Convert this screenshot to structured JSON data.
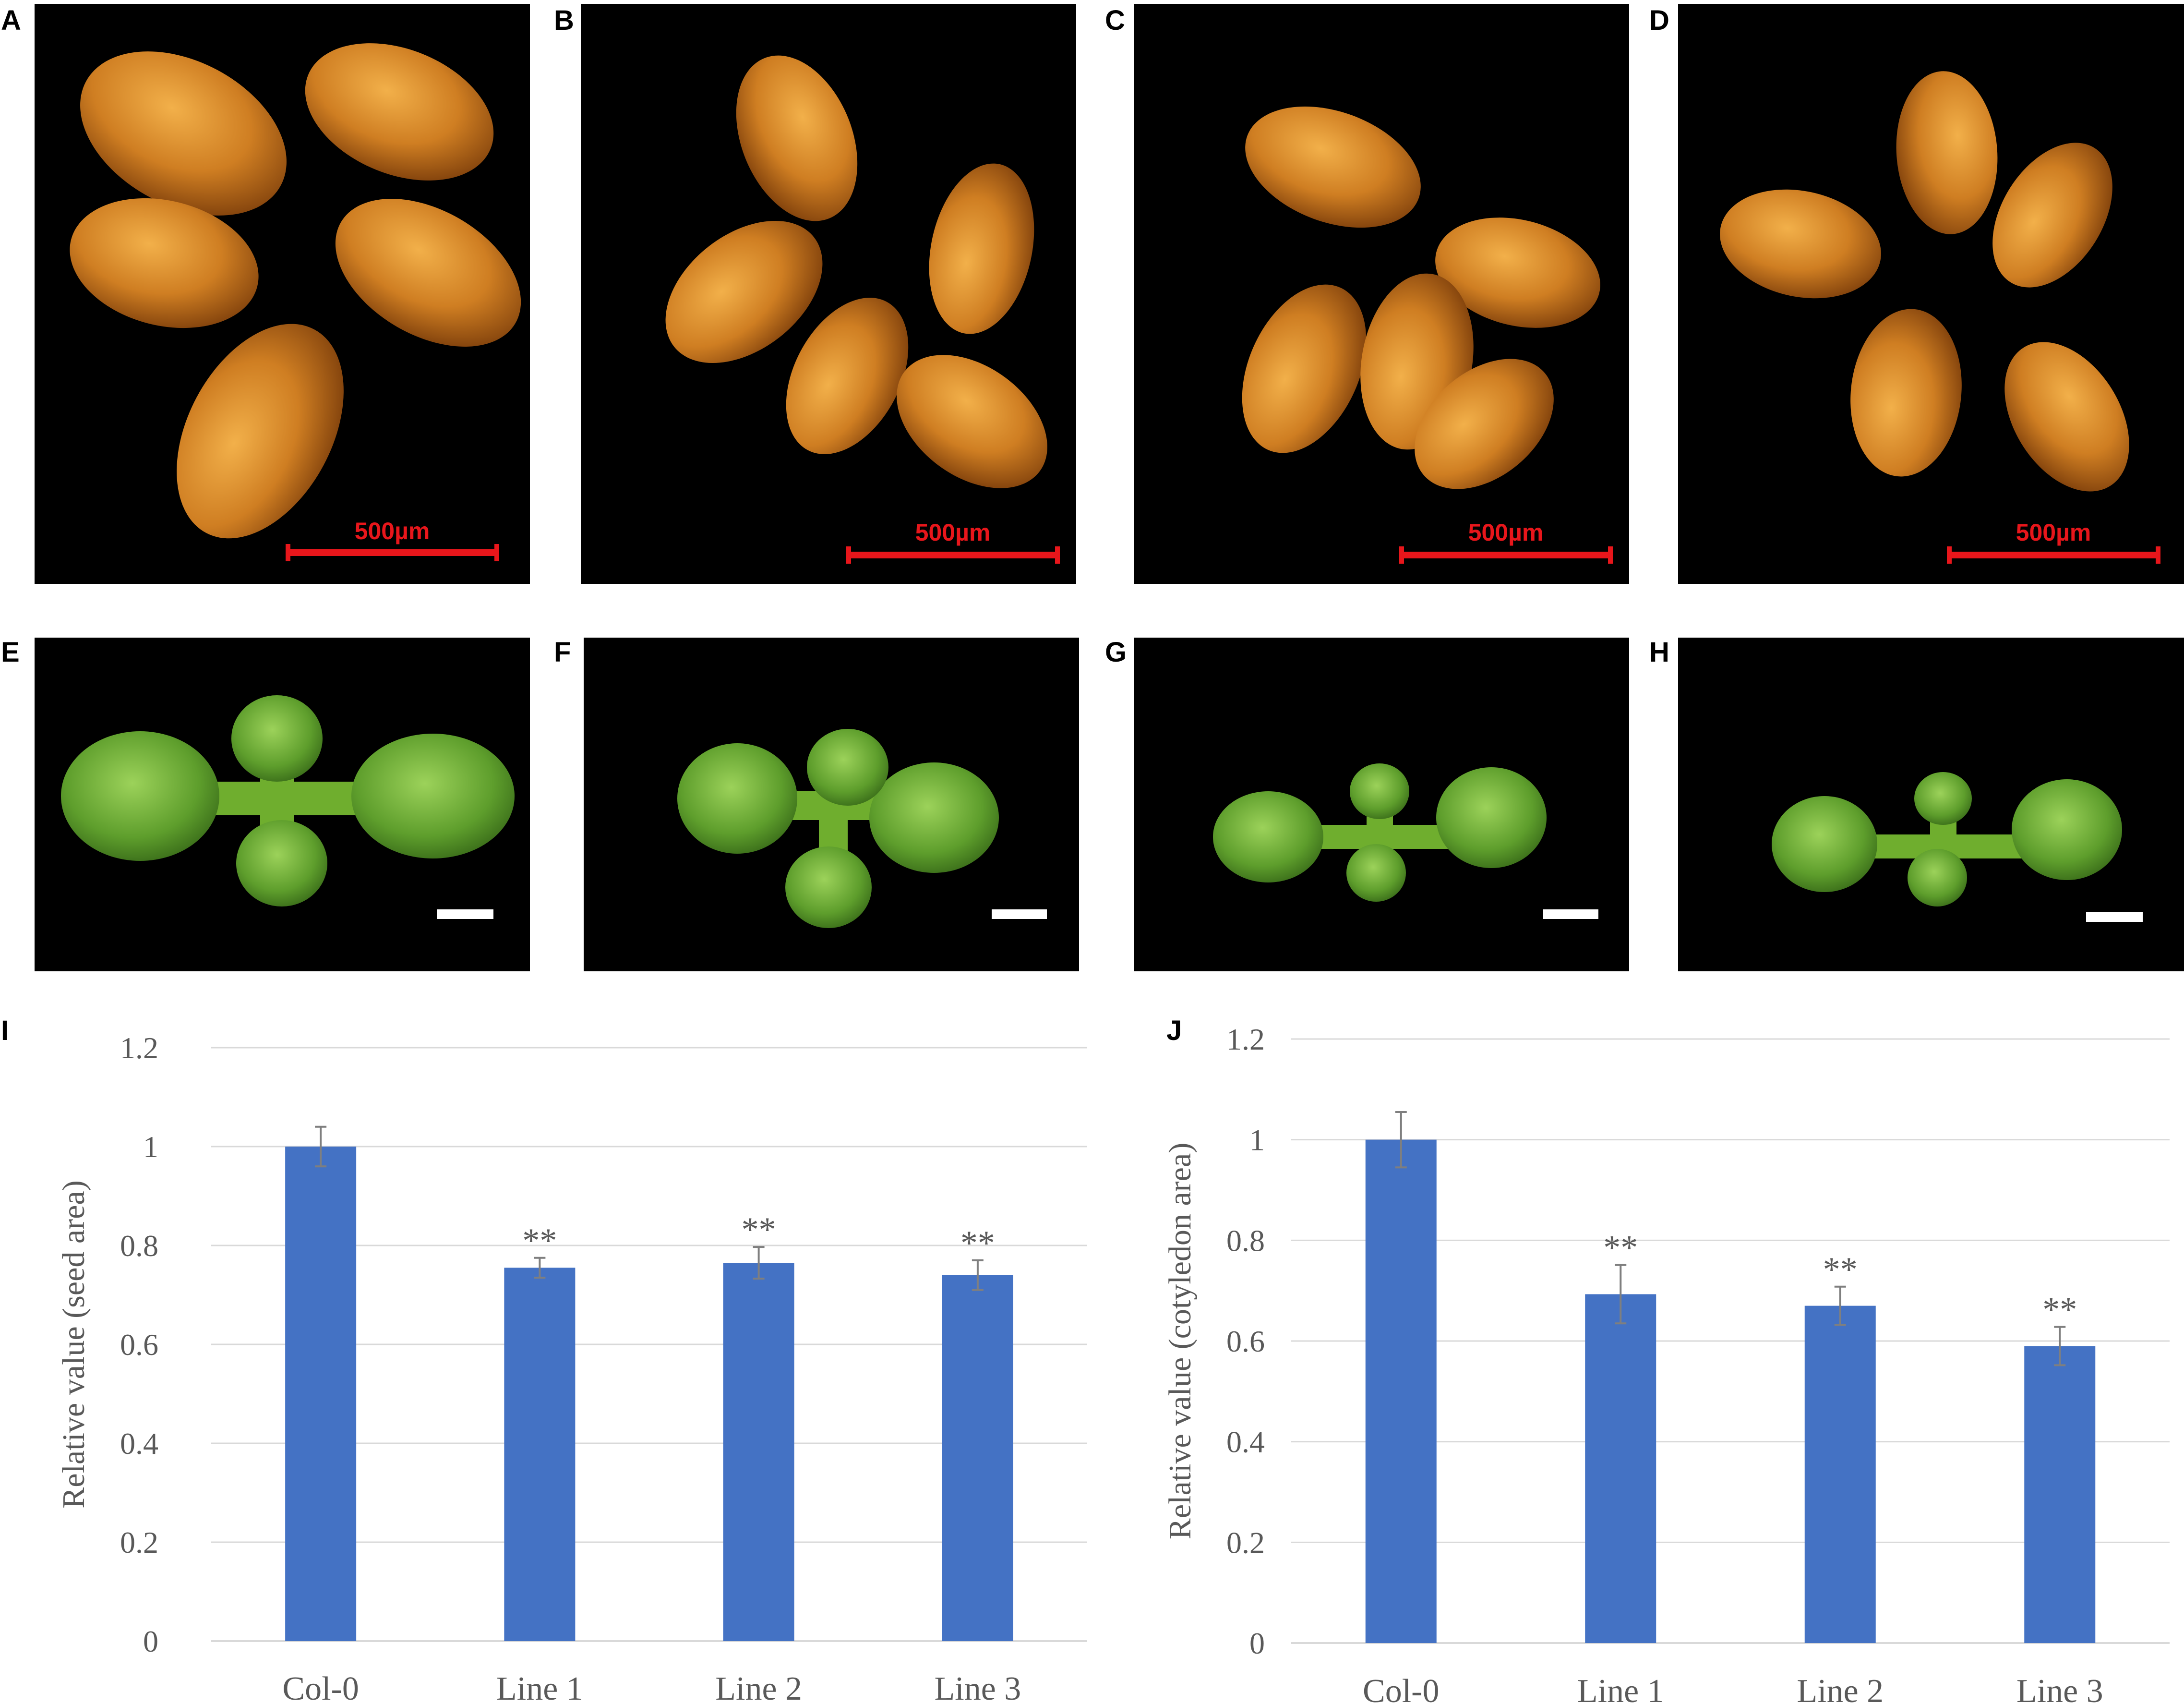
{
  "panels": {
    "A": {
      "letter": "A",
      "scalebar": "500µm"
    },
    "B": {
      "letter": "B",
      "scalebar": "500µm"
    },
    "C": {
      "letter": "C",
      "scalebar": "500µm"
    },
    "D": {
      "letter": "D",
      "scalebar": "500µm"
    },
    "E": {
      "letter": "E"
    },
    "F": {
      "letter": "F"
    },
    "G": {
      "letter": "G"
    },
    "H": {
      "letter": "H"
    },
    "I": {
      "letter": "I"
    },
    "J": {
      "letter": "J"
    }
  },
  "colors": {
    "bar": "#4472C4",
    "seed": "#C97A1E",
    "seedling": "#5E9E2C",
    "scalebar_seed": "#E8161B",
    "scalebar_seedling": "#FFFFFF",
    "axis_text": "#595959",
    "grid": "#D9D9D9"
  },
  "chart_data": [
    {
      "type": "bar",
      "panel": "I",
      "categories": [
        "Col-0",
        "Line 1",
        "Line 2",
        "Line 3"
      ],
      "values": [
        1.0,
        0.755,
        0.765,
        0.74
      ],
      "errors": [
        0.04,
        0.02,
        0.032,
        0.03
      ],
      "annotations": [
        "",
        "**",
        "**",
        "**"
      ],
      "ylabel": "Relative value (seed area)",
      "xlabel": "",
      "ylim": [
        0,
        1.2
      ],
      "yticks": [
        0,
        0.2,
        0.4,
        0.6,
        0.8,
        1,
        1.2
      ],
      "ytick_labels": [
        "0",
        "0.2",
        "0.4",
        "0.6",
        "0.8",
        "1",
        "1.2"
      ],
      "grid": true
    },
    {
      "type": "bar",
      "panel": "J",
      "categories": [
        "Col-0",
        "Line 1",
        "Line 2",
        "Line 3"
      ],
      "values": [
        1.0,
        0.693,
        0.67,
        0.59
      ],
      "errors": [
        0.055,
        0.058,
        0.038,
        0.038
      ],
      "annotations": [
        "",
        "**",
        "**",
        "**"
      ],
      "ylabel": "Relative value (cotyledon area)",
      "xlabel": "",
      "ylim": [
        0,
        1.2
      ],
      "yticks": [
        0,
        0.2,
        0.4,
        0.6,
        0.8,
        1,
        1.2
      ],
      "ytick_labels": [
        "0",
        "0.2",
        "0.4",
        "0.6",
        "0.8",
        "1",
        "1.2"
      ],
      "grid": true
    }
  ]
}
